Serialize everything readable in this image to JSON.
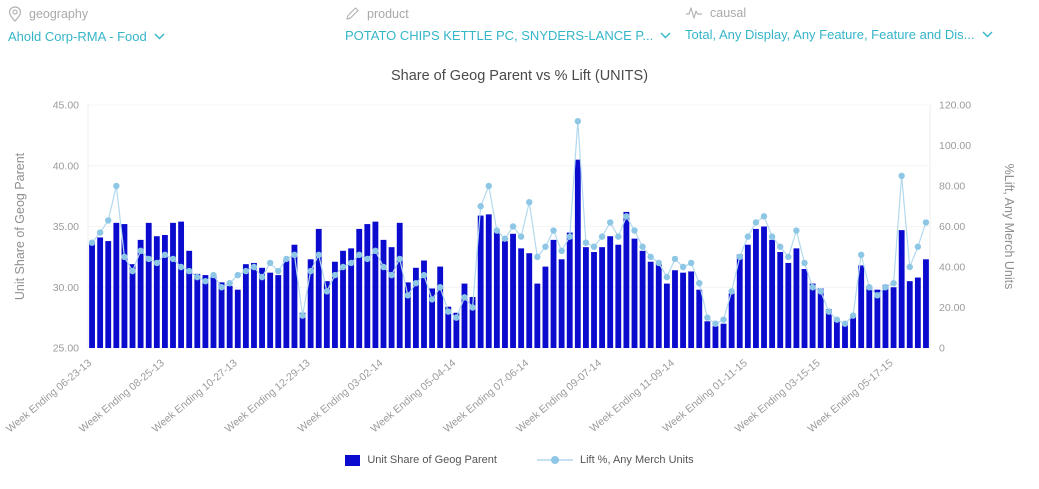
{
  "ui": {
    "accent_color": "#35b5c8",
    "label_color": "#a9a9a9",
    "axis_text_color": "#9b9b9b"
  },
  "filters": {
    "geography": {
      "label": "geography",
      "value": "Ahold Corp-RMA - Food"
    },
    "product": {
      "label": "product",
      "value": "POTATO CHIPS KETTLE PC, SNYDERS-LANCE P..."
    },
    "causal": {
      "label": "causal",
      "value": "Total, Any Display, Any Feature, Feature and Dis..."
    }
  },
  "chart_data": {
    "type": "bar",
    "subtype": "combo bar+line, dual axis",
    "title": "Share of Geog Parent vs % Lift (UNITS)",
    "n_points": 104,
    "x_tick_labels": [
      "Week Ending 06-23-13",
      "Week Ending 08-25-13",
      "Week Ending 10-27-13",
      "Week Ending 12-29-13",
      "Week Ending 03-02-14",
      "Week Ending 05-04-14",
      "Week Ending 07-06-14",
      "Week Ending 09-07-14",
      "Week Ending 11-09-14",
      "Week Ending 01-11-15",
      "Week Ending 03-15-15",
      "Week Ending 05-17-15"
    ],
    "x_tick_indices": [
      0,
      9,
      18,
      27,
      36,
      45,
      54,
      63,
      72,
      81,
      90,
      99
    ],
    "left_axis": {
      "title": "Unit Share of Geog Parent",
      "ticks": [
        "45.00",
        "40.00",
        "35.00",
        "30.00",
        "25.00"
      ],
      "min": 25,
      "max": 45
    },
    "right_axis": {
      "title": "%Lift, Any Merch Units",
      "ticks": [
        "120.00",
        "100.00",
        "80.00",
        "60.00",
        "40.00",
        "20.00",
        "0"
      ],
      "min": 0,
      "max": 120
    },
    "grid": "none",
    "legend_position": "bottom-center",
    "series": [
      {
        "name": "Unit Share of Geog Parent",
        "type": "bar",
        "axis": "left",
        "color": "#0b0bcf",
        "values": [
          33.6,
          34.1,
          33.8,
          35.3,
          35.2,
          31.9,
          33.9,
          35.3,
          34.2,
          34.3,
          35.3,
          35.4,
          33.0,
          31.1,
          31.0,
          30.9,
          30.4,
          30.1,
          29.8,
          31.9,
          32.0,
          31.6,
          31.2,
          31.0,
          32.2,
          33.5,
          27.9,
          32.3,
          34.8,
          30.5,
          32.1,
          33.0,
          33.2,
          34.8,
          35.2,
          35.4,
          33.9,
          33.3,
          35.3,
          30.4,
          31.6,
          32.2,
          29.9,
          31.7,
          28.4,
          27.9,
          30.3,
          29.2,
          35.9,
          36.0,
          34.6,
          33.8,
          34.4,
          33.2,
          32.8,
          30.3,
          31.7,
          33.9,
          32.3,
          34.5,
          40.5,
          33.3,
          32.9,
          33.3,
          34.2,
          33.5,
          36.2,
          34.0,
          33.0,
          32.1,
          31.9,
          30.3,
          31.4,
          31.2,
          31.3,
          29.8,
          27.2,
          26.8,
          27.0,
          29.5,
          32.7,
          33.5,
          34.8,
          35.0,
          33.9,
          32.9,
          32.0,
          33.2,
          31.5,
          30.3,
          29.9,
          28.2,
          27.4,
          27.0,
          27.6,
          31.8,
          30.1,
          29.8,
          30.2,
          30.0,
          34.7,
          30.5,
          30.8,
          32.3
        ]
      },
      {
        "name": "Lift %, Any Merch Units",
        "type": "line",
        "axis": "right",
        "color": "#b3d9ee",
        "dot_color": "#8ec7e6",
        "values": [
          52,
          57,
          63,
          80,
          45,
          38,
          48,
          44,
          42,
          46,
          44,
          40,
          38,
          35,
          33,
          36,
          30,
          32,
          36,
          38,
          40,
          35,
          42,
          38,
          44,
          46,
          16,
          38,
          46,
          28,
          36,
          40,
          42,
          46,
          44,
          48,
          40,
          36,
          44,
          26,
          32,
          36,
          24,
          30,
          18,
          15,
          25,
          20,
          70,
          80,
          58,
          54,
          60,
          55,
          72,
          45,
          50,
          58,
          48,
          55,
          112,
          52,
          50,
          55,
          62,
          55,
          65,
          58,
          50,
          45,
          42,
          35,
          44,
          40,
          42,
          32,
          15,
          12,
          14,
          28,
          45,
          55,
          62,
          65,
          55,
          50,
          45,
          58,
          42,
          30,
          28,
          18,
          14,
          12,
          16,
          46,
          30,
          26,
          30,
          32,
          85,
          40,
          50,
          62
        ]
      }
    ]
  }
}
